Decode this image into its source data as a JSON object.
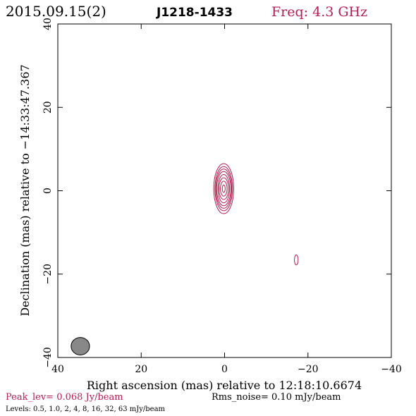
{
  "header": {
    "date": "2015.09.15(2)",
    "source": "J1218-1433",
    "frequency": "Freq: 4.3 GHz"
  },
  "footer": {
    "peak": "Peak_lev=  0.068 Jy/beam",
    "rms": "Rms_noise= 0.10 mJy/beam",
    "levels": "Levels: 0.5, 1.0,   2,   4,   8,  16,  32,  63 mJy/beam"
  },
  "colors": {
    "contour": "#b0204f",
    "frame": "#000000",
    "beam_fill": "#888888"
  },
  "chart_data": {
    "type": "contour",
    "title": "J1218-1433",
    "xlabel": "Right ascension (mas) relative to 12:18:10.6674",
    "ylabel": "Declination (mas) relative to −14:33:47.367",
    "xlim": [
      40,
      -40
    ],
    "ylim": [
      -40,
      40
    ],
    "xticks": [
      40,
      20,
      0,
      -20,
      -40
    ],
    "yticks": [
      -40,
      -20,
      0,
      20,
      40
    ],
    "xtick_labels": [
      "40",
      "20",
      "0",
      "−20",
      "−40"
    ],
    "ytick_labels": [
      "−40",
      "−20",
      "0",
      "20",
      "40"
    ],
    "contour_levels_mJy": [
      0.5,
      1.0,
      2,
      4,
      8,
      16,
      32,
      63
    ],
    "components": [
      {
        "ra": 0.2,
        "dec": 0.5,
        "semi_ra": [
          2.4,
          2.1,
          1.9,
          1.7,
          1.4,
          1.15,
          0.8,
          0.35
        ],
        "semi_dec": [
          6.0,
          5.3,
          4.7,
          4.1,
          3.4,
          2.6,
          1.8,
          0.9
        ]
      },
      {
        "ra": -17.2,
        "dec": -16.6,
        "semi_ra": [
          0.45
        ],
        "semi_dec": [
          1.2
        ]
      }
    ],
    "beam": {
      "ra": 34.6,
      "dec": -37.3,
      "semi_ra": 0.85,
      "semi_dec": 2.1
    }
  }
}
